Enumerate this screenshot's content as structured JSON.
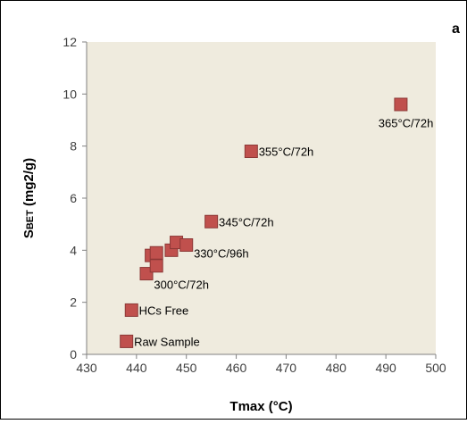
{
  "panel_label": "a",
  "chart_data": {
    "type": "scatter",
    "xlabel": "Tmax (°C)",
    "ylabel_main": "S",
    "ylabel_sub": "BET",
    "ylabel_unit": " (mg2/g)",
    "xlim": [
      430,
      500
    ],
    "ylim": [
      0,
      12
    ],
    "x_ticks": [
      430,
      440,
      450,
      460,
      470,
      480,
      490,
      500
    ],
    "y_ticks": [
      0,
      2,
      4,
      6,
      8,
      10,
      12
    ],
    "grid": false,
    "legend": "none",
    "colors": {
      "plot_background": "#efebde",
      "marker_fill": "#c0504d",
      "marker_edge": "#8c3836",
      "axis": "#808080",
      "frame": "#000000"
    },
    "points": [
      {
        "x": 438,
        "y": 0.5
      },
      {
        "x": 439,
        "y": 1.7
      },
      {
        "x": 442,
        "y": 3.1
      },
      {
        "x": 443,
        "y": 3.8
      },
      {
        "x": 444,
        "y": 3.4
      },
      {
        "x": 444,
        "y": 3.9
      },
      {
        "x": 447,
        "y": 4.0
      },
      {
        "x": 448,
        "y": 4.3
      },
      {
        "x": 450,
        "y": 4.2
      },
      {
        "x": 455,
        "y": 5.1
      },
      {
        "x": 463,
        "y": 7.8
      },
      {
        "x": 493,
        "y": 9.6
      }
    ],
    "annotations": [
      {
        "text": "Raw Sample",
        "x": 439.5,
        "y": 0.5
      },
      {
        "text": "HCs Free",
        "x": 440.5,
        "y": 1.7
      },
      {
        "text": "300°C/72h",
        "x": 443.5,
        "y": 2.7
      },
      {
        "text": "330°C/96h",
        "x": 451.5,
        "y": 3.9
      },
      {
        "text": "345°C/72h",
        "x": 456.5,
        "y": 5.1
      },
      {
        "text": "355°C/72h",
        "x": 464.5,
        "y": 7.8
      },
      {
        "text": "365°C/72h",
        "x": 488.5,
        "y": 8.9
      }
    ]
  }
}
